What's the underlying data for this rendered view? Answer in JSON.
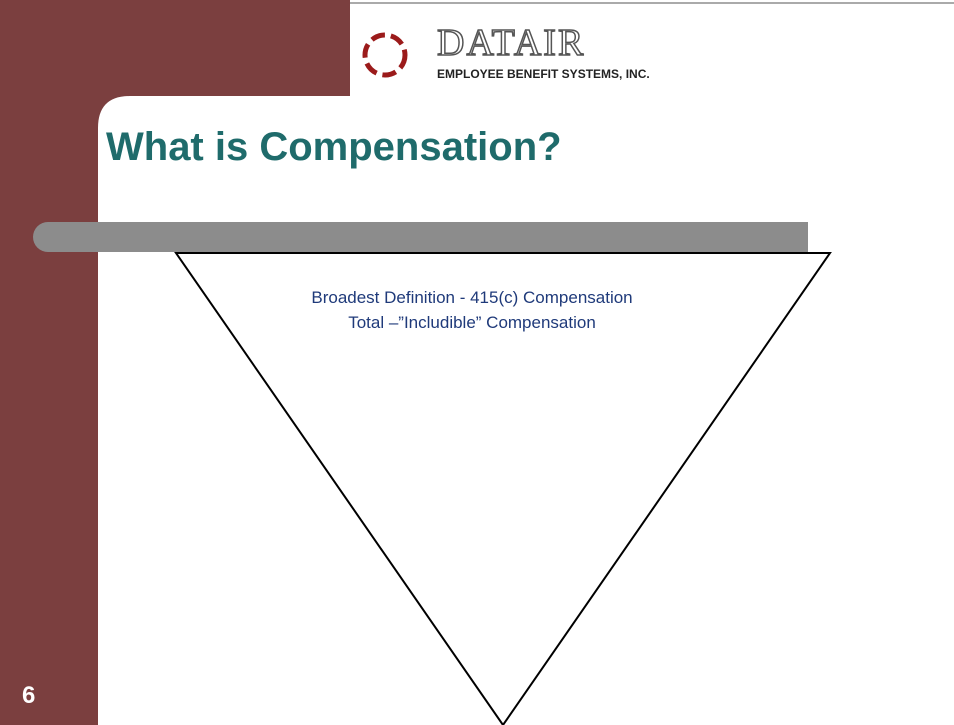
{
  "logo": {
    "brand": "DATAIR",
    "tagline": "EMPLOYEE BENEFIT SYSTEMS, INC."
  },
  "title": "What is Compensation?",
  "diagram": {
    "lines": [
      "Broadest Definition - 415(c) Compensation",
      "Total –”Includible” Compensation"
    ]
  },
  "slide_number": "6"
}
